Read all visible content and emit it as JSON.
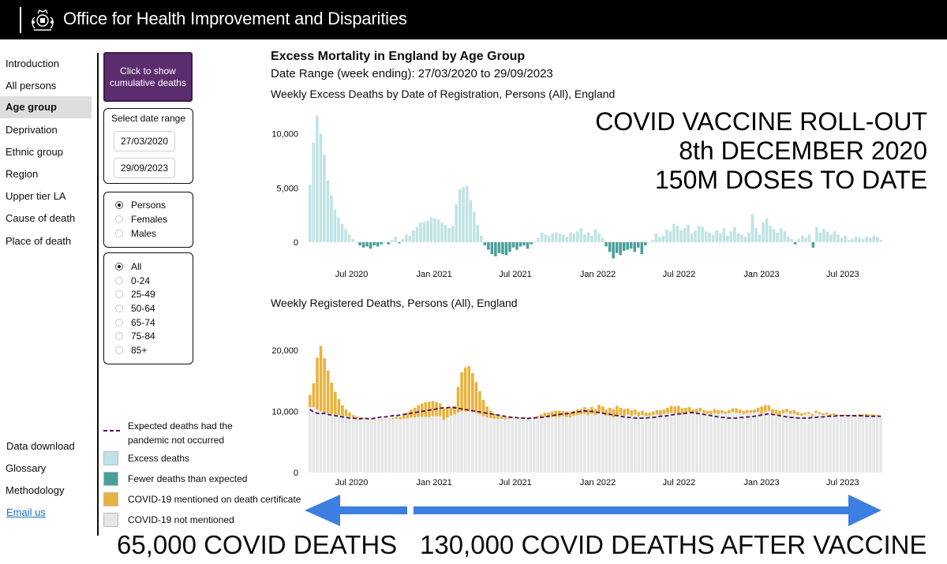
{
  "header": {
    "title": "Office for Health Improvement and Disparities",
    "crest_icon": "royal-crest-icon"
  },
  "nav": {
    "items": [
      "Introduction",
      "All persons",
      "Age group",
      "Deprivation",
      "Ethnic group",
      "Region",
      "Upper tier LA",
      "Cause of death",
      "Place of death"
    ],
    "active": "Age group",
    "bottom": [
      "Data download",
      "Glossary",
      "Methodology",
      "Email us"
    ]
  },
  "controls": {
    "cumulative_button": [
      "Click to show",
      "cumulative deaths"
    ],
    "date_range_title": "Select date range",
    "start_date": "27/03/2020",
    "end_date": "29/09/2023",
    "sex_options": [
      "Persons",
      "Females",
      "Males"
    ],
    "sex_selected": "Persons",
    "age_options": [
      "All",
      "0-24",
      "25-49",
      "50-64",
      "65-74",
      "75-84",
      "85+"
    ],
    "age_selected": "All"
  },
  "legend": {
    "expected_line": [
      "Expected deaths had the",
      "pandemic not occurred"
    ],
    "excess": "Excess deaths",
    "fewer": "Fewer deaths than expected",
    "covid_mentioned": "COVID-19 mentioned on death certificate",
    "covid_not_mentioned": "COVID-19 not mentioned"
  },
  "colors": {
    "excess": "#bfe3e4",
    "fewer": "#4a9f9b",
    "covid_mentioned": "#e8b23e",
    "covid_not_mentioned": "#e6e6e6",
    "expected_line": "#4b0e5c",
    "button": "#5c2d6e",
    "arrow": "#3d7fe0"
  },
  "chart_title": "Excess Mortality in England by Age Group",
  "date_range_label": "Date Range (week ending): 27/03/2020 to 29/09/2023",
  "annotations": {
    "vaccine": [
      "COVID VACCINE ROLL-OUT",
      "8th DECEMBER 2020",
      "150M DOSES TO DATE"
    ],
    "before": "65,000 COVID DEATHS",
    "after": "130,000 COVID DEATHS AFTER VACCINE"
  },
  "chart_data": [
    {
      "type": "bar",
      "title": "Weekly Excess Deaths by Date of Registration, Persons (All), England",
      "x_start": "2020-03-27",
      "x_end": "2023-09-29",
      "x_ticks": [
        "Jul 2020",
        "Jan 2021",
        "Jul 2021",
        "Jan 2022",
        "Jul 2022",
        "Jan 2023",
        "Jul 2023"
      ],
      "y_ticks": [
        "0",
        "5,000",
        "10,000"
      ],
      "ylim": [
        -2000,
        11800
      ],
      "series": [
        {
          "name": "Excess deaths",
          "values": [
            5300,
            9200,
            11700,
            10000,
            8100,
            5700,
            4300,
            3000,
            2300,
            1700,
            1200,
            700,
            300,
            0,
            -300,
            -500,
            -400,
            -600,
            -300,
            -400,
            -200,
            0,
            -200,
            200,
            500,
            -100,
            300,
            700,
            600,
            1100,
            1400,
            1800,
            1900,
            2000,
            2300,
            2200,
            2100,
            1800,
            1600,
            1300,
            1500,
            3500,
            4900,
            5100,
            5200,
            3900,
            2800,
            1600,
            600,
            -300,
            -700,
            -1100,
            -1300,
            -1000,
            -1100,
            -1200,
            -900,
            -500,
            -700,
            -400,
            -300,
            -600,
            -200,
            100,
            400,
            900,
            700,
            600,
            800,
            900,
            800,
            700,
            500,
            900,
            800,
            1000,
            1300,
            700,
            900,
            600,
            1200,
            800,
            400,
            -400,
            -900,
            -1500,
            -1000,
            -1200,
            -800,
            -700,
            -600,
            -900,
            -500,
            -1100,
            -300,
            0,
            200,
            800,
            500,
            600,
            1200,
            1000,
            1700,
            1500,
            1100,
            1300,
            1600,
            800,
            1100,
            1500,
            1400,
            1000,
            900,
            700,
            1100,
            800,
            1300,
            600,
            1000,
            1400,
            800,
            700,
            500,
            900,
            2600,
            1300,
            700,
            1800,
            2200,
            1500,
            1200,
            900,
            1300,
            1000,
            500,
            300,
            -200,
            300,
            600,
            400,
            700,
            -500,
            1400,
            900,
            1200,
            1000,
            700,
            1000,
            700,
            400,
            600,
            200,
            300,
            500,
            400,
            300,
            500,
            400,
            600,
            500,
            200
          ]
        }
      ]
    },
    {
      "type": "bar",
      "title": "Weekly Registered Deaths, Persons (All), England",
      "x_start": "2020-03-27",
      "x_end": "2023-09-29",
      "x_ticks": [
        "Jul 2020",
        "Jan 2021",
        "Jul 2021",
        "Jan 2022",
        "Jul 2022",
        "Jan 2023",
        "Jul 2023"
      ],
      "y_ticks": [
        "0",
        "10,000",
        "20,000"
      ],
      "ylim": [
        0,
        23000
      ],
      "series": [
        {
          "name": "COVID-19 not mentioned",
          "values": [
            10700,
            10700,
            10300,
            10000,
            9800,
            9700,
            9600,
            9500,
            9400,
            9300,
            9200,
            9100,
            9000,
            8900,
            8800,
            8800,
            8700,
            8600,
            8600,
            8600,
            8600,
            8600,
            8700,
            8800,
            8800,
            8700,
            8800,
            8900,
            9000,
            9000,
            9100,
            9100,
            9100,
            9100,
            9200,
            9200,
            9200,
            8600,
            9000,
            9300,
            9500,
            9800,
            10000,
            10000,
            10000,
            9900,
            9800,
            9500,
            9200,
            9000,
            8900,
            8800,
            8800,
            8800,
            8700,
            8800,
            8900,
            8900,
            8900,
            9000,
            8900,
            8800,
            8900,
            8900,
            9000,
            9100,
            9000,
            9100,
            9100,
            9100,
            9200,
            9100,
            9000,
            9300,
            9400,
            9500,
            9600,
            9400,
            9600,
            9400,
            9900,
            9600,
            9300,
            9400,
            9000,
            9300,
            9400,
            9300,
            9500,
            9300,
            9500,
            9200,
            9400,
            9200,
            9300,
            9400,
            9500,
            9400,
            9600,
            9700,
            9800,
            9700,
            9700,
            9500,
            9700,
            9900,
            9600,
            9700,
            10000,
            9700,
            9600,
            9500,
            9700,
            9600,
            9700,
            9600,
            9700,
            9900,
            9800,
            9700,
            9600,
            9700,
            9800,
            9800,
            9900,
            9600,
            9900,
            10100,
            9700,
            9500,
            9400,
            9700,
            9900,
            9600,
            9600,
            9400,
            9300,
            9500,
            9600,
            9200,
            9800,
            9600,
            9400,
            9500,
            9300,
            9400,
            9300,
            9200,
            9300,
            9200,
            9200,
            9100,
            9200,
            9200,
            9300,
            9200,
            9300,
            9200,
            9100
          ]
        },
        {
          "name": "COVID-19 mentioned on death certificate",
          "values": [
            2000,
            3900,
            8500,
            10700,
            8900,
            7000,
            5100,
            3700,
            2600,
            1700,
            1100,
            700,
            400,
            300,
            200,
            100,
            100,
            100,
            100,
            100,
            100,
            100,
            100,
            200,
            300,
            400,
            600,
            900,
            1300,
            1600,
            1900,
            2200,
            2400,
            2500,
            2500,
            2300,
            2100,
            1900,
            1600,
            1300,
            1400,
            4200,
            6400,
            7200,
            7400,
            6400,
            5000,
            3800,
            2700,
            1800,
            1200,
            800,
            500,
            400,
            300,
            200,
            200,
            100,
            100,
            100,
            100,
            100,
            200,
            300,
            500,
            700,
            800,
            900,
            1000,
            1000,
            900,
            900,
            800,
            800,
            900,
            900,
            1100,
            1000,
            1100,
            1000,
            1200,
            1200,
            1000,
            1200,
            1400,
            1600,
            1200,
            1100,
            1000,
            900,
            800,
            700,
            700,
            600,
            500,
            600,
            700,
            800,
            700,
            900,
            1100,
            1100,
            1200,
            1000,
            900,
            800,
            700,
            700,
            600,
            500,
            500,
            600,
            700,
            600,
            500,
            400,
            500,
            600,
            700,
            600,
            500,
            500,
            400,
            500,
            700,
            1200,
            1100,
            900,
            700,
            800,
            700,
            600,
            500,
            500,
            600,
            500,
            400,
            300,
            300,
            400,
            300,
            300,
            300,
            300,
            300,
            300,
            200,
            200,
            200,
            200,
            200,
            200,
            300,
            300,
            300,
            300,
            200,
            200
          ]
        },
        {
          "name": "Expected deaths had the pandemic not occurred",
          "values": [
            10300,
            9900,
            9700,
            9600,
            9700,
            9500,
            9400,
            9300,
            9200,
            9100,
            9000,
            8900,
            8900,
            8800,
            8800,
            8900,
            8800,
            8800,
            8900,
            9000,
            9100,
            9100,
            9200,
            9300,
            9300,
            9400,
            9500,
            9600,
            9700,
            9800,
            9900,
            10000,
            10100,
            10200,
            10300,
            10400,
            10500,
            10600,
            10600,
            10700,
            10600,
            10500,
            10400,
            10300,
            10200,
            10100,
            10000,
            9900,
            9800,
            9700,
            9600,
            9500,
            9400,
            9300,
            9200,
            9100,
            9000,
            9000,
            8900,
            8900,
            8800,
            8900,
            8900,
            9000,
            9000,
            9100,
            9200,
            9300,
            9400,
            9500,
            9600,
            9600,
            9700,
            9800,
            9900,
            10000,
            10100,
            10000,
            10000,
            9900,
            9800,
            9700,
            9600,
            9500,
            9400,
            9300,
            9200,
            9100,
            9000,
            9000,
            8900,
            8900,
            8900,
            8900,
            9000,
            9000,
            9100,
            9200,
            9200,
            9300,
            9400,
            9500,
            9600,
            9600,
            9700,
            9800,
            9800,
            9700,
            9600,
            9500,
            9400,
            9300,
            9200,
            9100,
            9000,
            9000,
            8900,
            8900,
            8900,
            9000,
            9000,
            9100,
            9100,
            9200,
            9300,
            9400,
            9500,
            9600,
            9500,
            9400,
            9300,
            9200,
            9100,
            9000,
            9000,
            8900,
            8900,
            8900,
            8900,
            9000,
            9000,
            9100,
            9100,
            9200,
            9200,
            9200,
            9300,
            9300,
            9300,
            9300,
            9300,
            9300,
            9300,
            9300,
            9200,
            9200,
            9200,
            9200,
            9200
          ]
        }
      ]
    }
  ]
}
